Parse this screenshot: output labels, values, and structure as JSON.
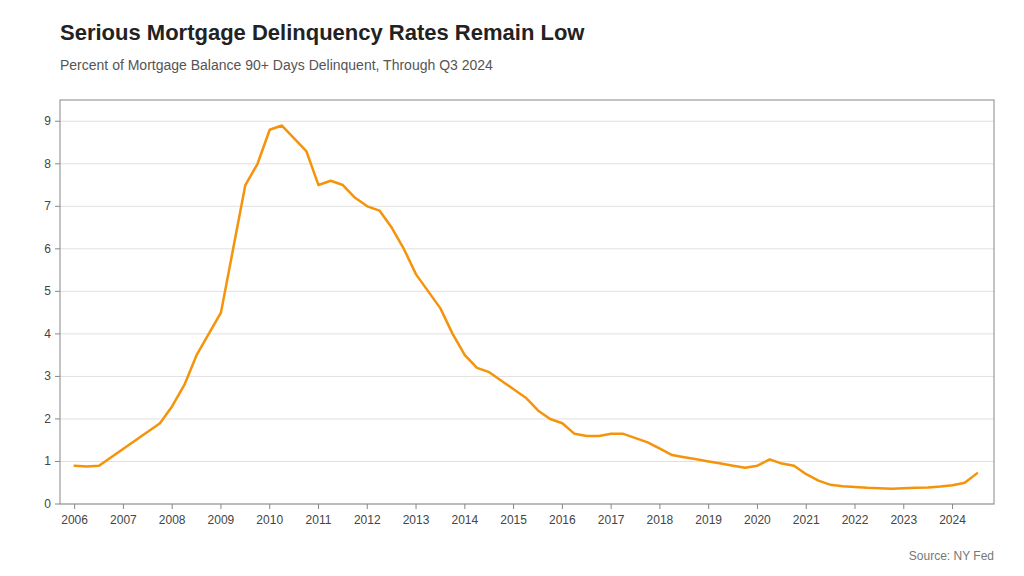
{
  "chart_data": {
    "type": "line",
    "title": "Serious Mortgage Delinquency Rates Remain Low",
    "subtitle": "Percent of Mortgage Balance 90+ Days Delinquent, Through Q3 2024",
    "annotations": [
      "Source: NY Fed"
    ],
    "color": "#F5930A",
    "grid": true,
    "xlim": [
      2005.7,
      2024.85
    ],
    "xticks": [
      2006,
      2007,
      2008,
      2009,
      2010,
      2011,
      2012,
      2013,
      2014,
      2015,
      2016,
      2017,
      2018,
      2019,
      2020,
      2021,
      2022,
      2023,
      2024
    ],
    "ylim": [
      0,
      9.5
    ],
    "yticks": [
      0,
      1,
      2,
      3,
      4,
      5,
      6,
      7,
      8,
      9
    ],
    "x": [
      2006.0,
      2006.25,
      2006.5,
      2006.75,
      2007.0,
      2007.25,
      2007.5,
      2007.75,
      2008.0,
      2008.25,
      2008.5,
      2008.75,
      2009.0,
      2009.25,
      2009.5,
      2009.75,
      2010.0,
      2010.25,
      2010.5,
      2010.75,
      2011.0,
      2011.25,
      2011.5,
      2011.75,
      2012.0,
      2012.25,
      2012.5,
      2012.75,
      2013.0,
      2013.25,
      2013.5,
      2013.75,
      2014.0,
      2014.25,
      2014.5,
      2014.75,
      2015.0,
      2015.25,
      2015.5,
      2015.75,
      2016.0,
      2016.25,
      2016.5,
      2016.75,
      2017.0,
      2017.25,
      2017.5,
      2017.75,
      2018.0,
      2018.25,
      2018.5,
      2018.75,
      2019.0,
      2019.25,
      2019.5,
      2019.75,
      2020.0,
      2020.25,
      2020.5,
      2020.75,
      2021.0,
      2021.25,
      2021.5,
      2021.75,
      2022.0,
      2022.25,
      2022.5,
      2022.75,
      2023.0,
      2023.25,
      2023.5,
      2023.75,
      2024.0,
      2024.25,
      2024.5
    ],
    "values": [
      0.9,
      0.88,
      0.9,
      1.1,
      1.3,
      1.5,
      1.7,
      1.9,
      2.3,
      2.8,
      3.5,
      4.0,
      4.5,
      6.0,
      7.5,
      8.0,
      8.8,
      8.9,
      8.6,
      8.3,
      7.5,
      7.6,
      7.5,
      7.2,
      7.0,
      6.9,
      6.5,
      6.0,
      5.4,
      5.0,
      4.6,
      4.0,
      3.5,
      3.2,
      3.1,
      2.9,
      2.7,
      2.5,
      2.2,
      2.0,
      1.9,
      1.65,
      1.6,
      1.6,
      1.65,
      1.65,
      1.55,
      1.45,
      1.3,
      1.15,
      1.1,
      1.05,
      1.0,
      0.95,
      0.9,
      0.85,
      0.9,
      1.05,
      0.95,
      0.9,
      0.7,
      0.55,
      0.45,
      0.42,
      0.4,
      0.38,
      0.37,
      0.36,
      0.37,
      0.38,
      0.39,
      0.41,
      0.44,
      0.5,
      0.72
    ]
  }
}
